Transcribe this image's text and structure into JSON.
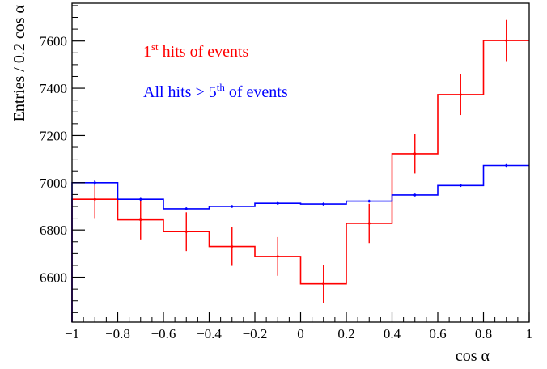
{
  "chart_data": {
    "type": "line",
    "xlabel": "cos α",
    "ylabel": "Entries / 0.2 cos α",
    "xlim": [
      -1,
      1
    ],
    "ylim": [
      6410,
      7760
    ],
    "x_ticks": [
      "−1",
      "−0.8",
      "−0.6",
      "−0.4",
      "−0.2",
      "0",
      "0.2",
      "0.4",
      "0.6",
      "0.8",
      "1"
    ],
    "y_ticks": [
      "6600",
      "6800",
      "7000",
      "7200",
      "7400",
      "7600"
    ],
    "grid": false,
    "legend_position": "top-left",
    "bin_edges": [
      -1,
      -0.8,
      -0.6,
      -0.4,
      -0.2,
      0,
      0.2,
      0.4,
      0.6,
      0.8,
      1
    ],
    "series": [
      {
        "label_pre": "1",
        "label_sup": "st",
        "label_post": " hits of events",
        "color": "#ff0000",
        "values": [
          6930,
          6843,
          6793,
          6730,
          6688,
          6572,
          6828,
          7123,
          7373,
          7602
        ],
        "errors": [
          83,
          83,
          82,
          82,
          82,
          81,
          83,
          84,
          86,
          87
        ]
      },
      {
        "label_pre": "All hits > 5",
        "label_sup": "th",
        "label_post": " of events",
        "color": "#0000ff",
        "values": [
          7000,
          6930,
          6890,
          6900,
          6913,
          6910,
          6922,
          6948,
          6988,
          7073
        ],
        "errors": [
          12,
          6,
          6,
          6,
          6,
          6,
          6,
          6,
          6,
          6
        ]
      }
    ]
  }
}
